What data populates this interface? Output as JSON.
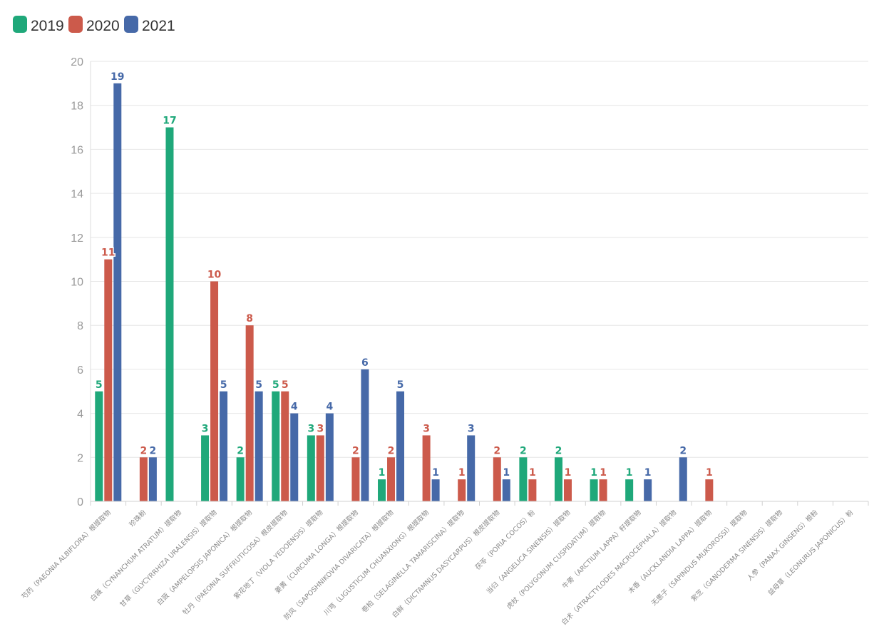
{
  "chart_data": {
    "type": "bar",
    "categories": [
      "芍药（PAEONIA ALBIFLORA）根提取物",
      "珍珠粉",
      "白薇（CYNANCHUM ATRATUM）提取物",
      "甘草（GLYCYRRHIZA URALENSIS）提取物",
      "白蔹（AMPELOPSIS JAPONICA）根提取物",
      "牡丹（PAEONIA SUFFRUTICOSA）根皮提取物",
      "紫花地丁（VIOLA YEDOENSIS）提取物",
      "姜黄（CURCUMA LONGA）根提取物",
      "防风（SAPOSHNIKOVIA DIVARICATA）根提取物",
      "川芎（LIGUSTICUM CHUANXIONG）根提取物",
      "卷柏（SELAGINELLA TAMARISCINA）提取物",
      "白鲜（DICTAMNUS DASYCARPUS）根皮提取物",
      "茯苓（PORIA COCOS）粉",
      "当归（ANGELICA SINENSIS）提取物",
      "虎杖（POLYGONUM CUSPIDATUM）提取物",
      "牛蒡（ARCTIUM LAPPA）籽提取物",
      "白术（ATRACTYLODES MACROCEPHALA）提取物",
      "木香（AUCKLANDIA LAPPA）提取物",
      "无患子（SAPINDUS MUKOROSSI）提取物",
      "紫芝（GANODERMA SINENSIS）提取物",
      "人参（PANAX GINSENG）根粉",
      "益母草（LEONURUS JAPONICUS）粉"
    ],
    "series": [
      {
        "name": "2019",
        "color": "#1fa87a",
        "values": [
          5,
          null,
          17,
          3,
          2,
          5,
          3,
          null,
          1,
          null,
          null,
          null,
          2,
          2,
          1,
          1,
          null,
          null,
          null,
          null,
          null,
          null
        ]
      },
      {
        "name": "2020",
        "color": "#cc5a4b",
        "values": [
          11,
          2,
          null,
          10,
          8,
          5,
          3,
          2,
          2,
          3,
          1,
          2,
          1,
          1,
          1,
          null,
          null,
          1,
          null,
          null,
          null,
          null
        ]
      },
      {
        "name": "2021",
        "color": "#4669a8",
        "values": [
          19,
          2,
          null,
          5,
          5,
          4,
          4,
          6,
          5,
          1,
          3,
          1,
          null,
          null,
          null,
          1,
          2,
          null,
          null,
          null,
          null,
          null
        ]
      }
    ],
    "y_ticks": [
      "0",
      "2",
      "4",
      "6",
      "8",
      "10",
      "12",
      "14",
      "16",
      "18",
      "20"
    ],
    "ylim": [
      0,
      20
    ],
    "grid": true,
    "legend_position": "top-left"
  }
}
